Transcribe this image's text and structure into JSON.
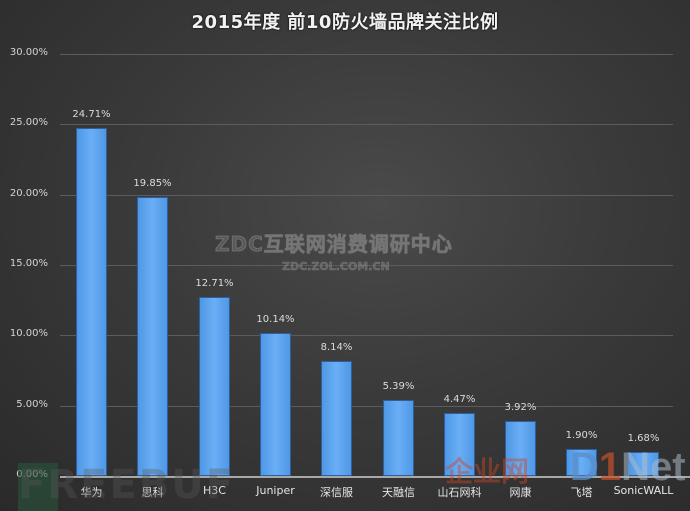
{
  "chart_data": {
    "type": "bar",
    "title": "2015年度 前10防火墙品牌关注比例",
    "xlabel": "",
    "ylabel": "",
    "categories": [
      "华为",
      "思科",
      "H3C",
      "Juniper",
      "深信服",
      "天融信",
      "山石网科",
      "网康",
      "飞塔",
      "SonicWALL"
    ],
    "values": [
      24.71,
      19.85,
      12.71,
      10.14,
      8.14,
      5.39,
      4.47,
      3.92,
      1.9,
      1.68
    ],
    "value_labels": [
      "24.71%",
      "19.85%",
      "12.71%",
      "10.14%",
      "8.14%",
      "5.39%",
      "4.47%",
      "3.92%",
      "1.90%",
      "1.68%"
    ],
    "ylim": [
      0,
      30
    ],
    "yticks": [
      0,
      5,
      10,
      15,
      20,
      25,
      30
    ],
    "ytick_labels": [
      "0.00%",
      "5.00%",
      "10.00%",
      "15.00%",
      "20.00%",
      "25.00%",
      "30.00%"
    ],
    "grid": true,
    "legend": null,
    "bar_color": "#5aa2ee",
    "background_color": "#3a3a3a"
  },
  "watermarks": {
    "zdc_title": "ZDC互联网消费调研中心",
    "zdc_url": "ZDC.ZOL.COM.CN",
    "freebuf": "FREEBUF",
    "qiye": "企业网",
    "dnet_d": "D",
    "dnet_i": "1",
    "dnet_net": "Net"
  }
}
